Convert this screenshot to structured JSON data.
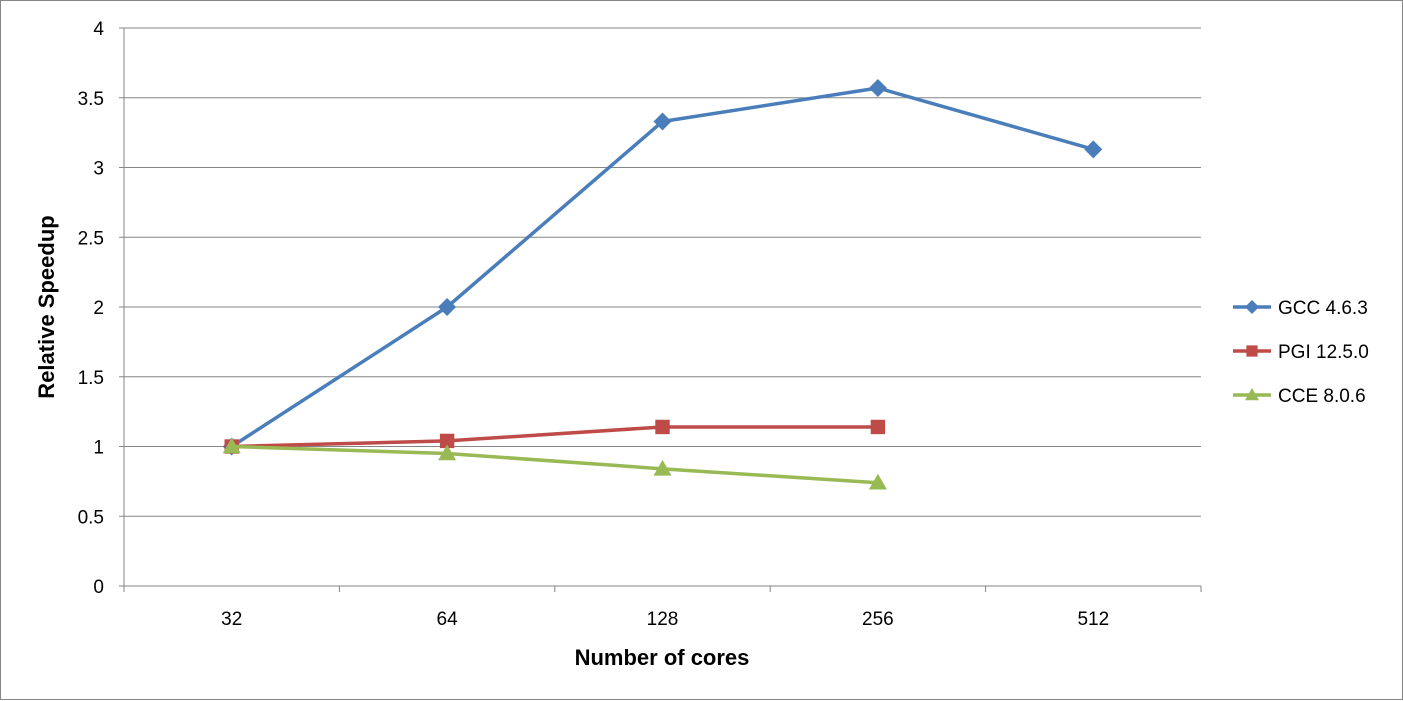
{
  "chart_data": {
    "type": "line",
    "title": "",
    "xlabel": "Number of cores",
    "ylabel": "Relative Speedup",
    "categories": [
      "32",
      "64",
      "128",
      "256",
      "512"
    ],
    "ylim": [
      0,
      4
    ],
    "yticks": [
      "0",
      "0.5",
      "1",
      "1.5",
      "2",
      "2.5",
      "3",
      "3.5",
      "4"
    ],
    "grid": true,
    "legend_position": "right",
    "series": [
      {
        "name": "GCC 4.6.3",
        "color": "#4a7ebb",
        "marker": "diamond",
        "values": [
          1,
          2.0,
          3.33,
          3.57,
          3.13
        ]
      },
      {
        "name": "PGI 12.5.0",
        "color": "#be4b48",
        "marker": "square",
        "values": [
          1,
          1.04,
          1.14,
          1.14,
          null
        ]
      },
      {
        "name": "CCE 8.0.6",
        "color": "#98b954",
        "marker": "triangle",
        "values": [
          1,
          0.95,
          0.84,
          0.74,
          null
        ]
      }
    ]
  }
}
